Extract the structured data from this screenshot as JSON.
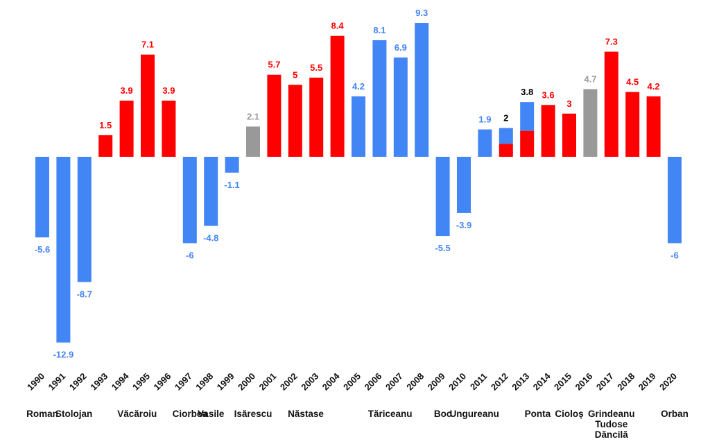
{
  "chart_data": {
    "type": "bar",
    "colors": {
      "blue": "#4285f4",
      "red": "#ff0000",
      "gray": "#999999",
      "black": "#000000"
    },
    "ylim": [
      -12.9,
      9.3
    ],
    "categories": [
      "1990",
      "1991",
      "1992",
      "1993",
      "1994",
      "1995",
      "1996",
      "1997",
      "1998",
      "1999",
      "2000",
      "2001",
      "2002",
      "2003",
      "2004",
      "2005",
      "2006",
      "2007",
      "2008",
      "2009",
      "2010",
      "2011",
      "2012",
      "2013",
      "2014",
      "2015",
      "2016",
      "2017",
      "2018",
      "2019",
      "2020"
    ],
    "values": [
      -5.6,
      -12.9,
      -8.7,
      1.5,
      3.9,
      7.1,
      3.9,
      -6,
      -4.8,
      -1.1,
      2.1,
      5.7,
      5,
      5.5,
      8.4,
      4.2,
      8.1,
      6.9,
      9.3,
      -5.5,
      -3.9,
      1.9,
      2,
      3.8,
      3.6,
      3,
      4.7,
      7.3,
      4.5,
      4.2,
      -6
    ],
    "bar_colors": [
      "blue",
      "blue",
      "blue",
      "red",
      "red",
      "red",
      "red",
      "blue",
      "blue",
      "blue",
      "gray",
      "red",
      "red",
      "red",
      "red",
      "blue",
      "blue",
      "blue",
      "blue",
      "blue",
      "blue",
      "blue",
      "split",
      "split",
      "red",
      "red",
      "gray",
      "red",
      "red",
      "red",
      "blue"
    ],
    "split_red_values": {
      "2012": 0.9,
      "2013": 1.8
    },
    "labels": [
      "-5.6",
      "-12.9",
      "-8.7",
      "1.5",
      "3.9",
      "7.1",
      "3.9",
      "-6",
      "-4.8",
      "-1.1",
      "2.1",
      "5.7",
      "5",
      "5.5",
      "8.4",
      "4.2",
      "8.1",
      "6.9",
      "9.3",
      "-5.5",
      "-3.9",
      "1.9",
      "2",
      "3.8",
      "3.6",
      "3",
      "4.7",
      "7.3",
      "4.5",
      "4.2",
      "-6"
    ],
    "label_colors": [
      "blue",
      "blue",
      "blue",
      "red",
      "red",
      "red",
      "red",
      "blue",
      "blue",
      "blue",
      "gray",
      "red",
      "red",
      "red",
      "red",
      "blue",
      "blue",
      "blue",
      "blue",
      "blue",
      "blue",
      "blue",
      "black",
      "black",
      "red",
      "red",
      "gray",
      "red",
      "red",
      "red",
      "blue"
    ],
    "prime_ministers": [
      {
        "name": [
          "Roman"
        ],
        "from": 0,
        "to": 0
      },
      {
        "name": [
          "Stolojan"
        ],
        "from": 1,
        "to": 2
      },
      {
        "name": [
          "Văcăroiu"
        ],
        "from": 3,
        "to": 6
      },
      {
        "name": [
          "Ciorbea"
        ],
        "from": 7,
        "to": 7
      },
      {
        "name": [
          "Vasile"
        ],
        "from": 8,
        "to": 8
      },
      {
        "name": [
          "Isărescu"
        ],
        "from": 10,
        "to": 10
      },
      {
        "name": [
          "Năstase"
        ],
        "from": 11,
        "to": 14
      },
      {
        "name": [
          "Tăriceanu"
        ],
        "from": 15,
        "to": 18
      },
      {
        "name": [
          "Boc"
        ],
        "from": 19,
        "to": 19
      },
      {
        "name": [
          "Ungureanu"
        ],
        "from": 20,
        "to": 21
      },
      {
        "name": [
          "Ponta"
        ],
        "from": 23,
        "to": 24
      },
      {
        "name": [
          "Cioloș"
        ],
        "from": 25,
        "to": 25
      },
      {
        "name": [
          "Grindeanu",
          "Tudose",
          "Dăncilă"
        ],
        "from": 27,
        "to": 27
      },
      {
        "name": [
          "Orban"
        ],
        "from": 30,
        "to": 30
      }
    ]
  }
}
